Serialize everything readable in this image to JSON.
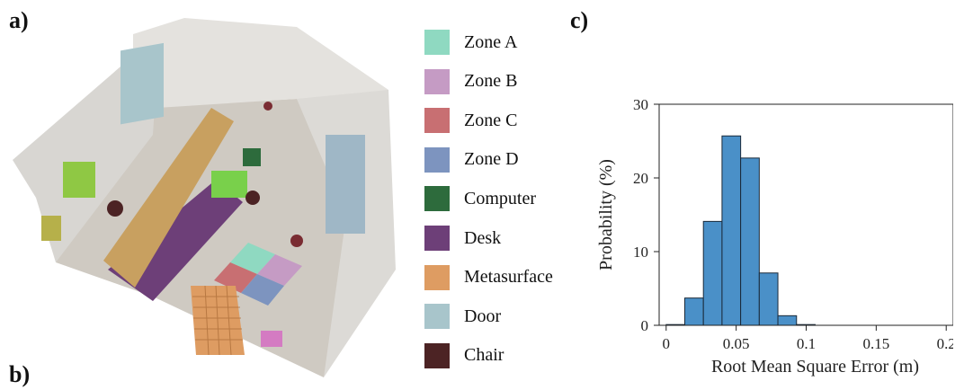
{
  "panels": {
    "a": "a)",
    "b": "b)",
    "c": "c)"
  },
  "legend": {
    "items": [
      {
        "label": "Zone A",
        "color": "#8fd9c1"
      },
      {
        "label": "Zone B",
        "color": "#c59bc4"
      },
      {
        "label": "Zone C",
        "color": "#c86f72"
      },
      {
        "label": "Zone D",
        "color": "#7d94bf"
      },
      {
        "label": "Computer",
        "color": "#2d6b3c"
      },
      {
        "label": "Desk",
        "color": "#6d3f78"
      },
      {
        "label": "Metasurface",
        "color": "#de9c62"
      },
      {
        "label": "Door",
        "color": "#a8c5cb"
      },
      {
        "label": "Chair",
        "color": "#4c2324"
      }
    ]
  },
  "chart_data": {
    "type": "bar",
    "subtype": "histogram",
    "title": "",
    "xlabel": "Root Mean Square Error (m)",
    "ylabel": "Probability (%)",
    "xlim": [
      -0.005,
      0.205
    ],
    "ylim": [
      0,
      30
    ],
    "xticks": [
      0,
      0.05,
      0.1,
      0.15,
      0.2
    ],
    "xtick_labels": [
      "0",
      "0.05",
      "0.1",
      "0.15",
      "0.2"
    ],
    "yticks": [
      0,
      10,
      20,
      30
    ],
    "ytick_labels": [
      "0",
      "10",
      "20",
      "30"
    ],
    "bin_width": 0.0133,
    "bins_start": [
      0,
      0.0133,
      0.0266,
      0.0399,
      0.0532,
      0.0665,
      0.0798,
      0.0931
    ],
    "values": [
      0.1,
      3.7,
      14.1,
      25.7,
      22.7,
      7.1,
      1.3,
      0.1
    ],
    "bar_color": "#4a90c8",
    "edge_color": "#1a2a3a",
    "grid": false
  }
}
